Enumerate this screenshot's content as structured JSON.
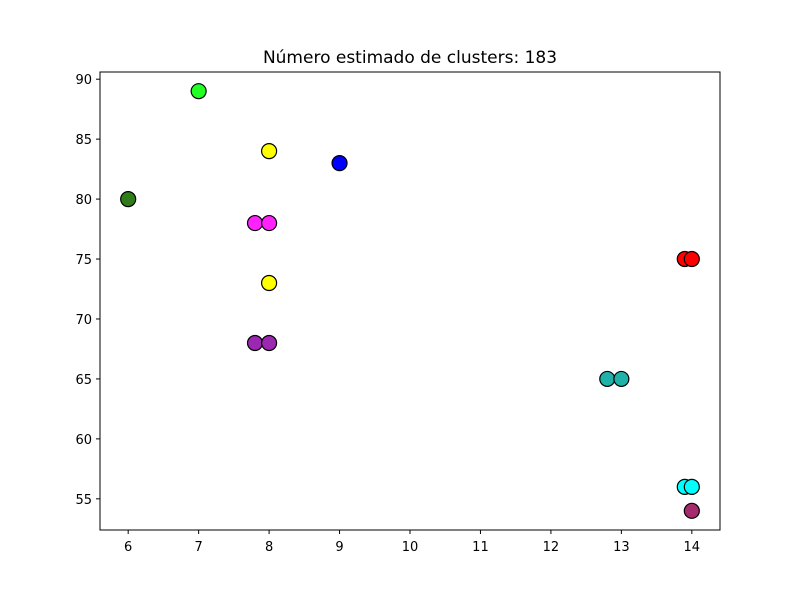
{
  "chart_data": {
    "type": "scatter",
    "title": "Número estimado de clusters: 183",
    "xlabel": "",
    "ylabel": "",
    "xlim": [
      5.6,
      14.4
    ],
    "ylim": [
      52.4,
      90.6
    ],
    "xticks": [
      6,
      7,
      8,
      9,
      10,
      11,
      12,
      13,
      14
    ],
    "yticks": [
      55,
      60,
      65,
      70,
      75,
      80,
      85,
      90
    ],
    "grid": false,
    "points": [
      {
        "x": 7,
        "y": 89,
        "color": "#22ff22"
      },
      {
        "x": 8,
        "y": 84,
        "color": "#ffff00"
      },
      {
        "x": 9,
        "y": 83,
        "color": "#0000ff"
      },
      {
        "x": 6,
        "y": 80,
        "color": "#2e7d1a"
      },
      {
        "x": 7.8,
        "y": 78,
        "color": "#ff22ff"
      },
      {
        "x": 8,
        "y": 78,
        "color": "#ff22ff"
      },
      {
        "x": 13.9,
        "y": 75,
        "color": "#ff0000"
      },
      {
        "x": 14,
        "y": 75,
        "color": "#ff0000"
      },
      {
        "x": 8,
        "y": 73,
        "color": "#ffff00"
      },
      {
        "x": 7.8,
        "y": 68,
        "color": "#9c27b0"
      },
      {
        "x": 8,
        "y": 68,
        "color": "#9c27b0"
      },
      {
        "x": 12.8,
        "y": 65,
        "color": "#20b2aa"
      },
      {
        "x": 13,
        "y": 65,
        "color": "#20b2aa"
      },
      {
        "x": 13.9,
        "y": 56,
        "color": "#00ffff"
      },
      {
        "x": 14,
        "y": 56,
        "color": "#00ffff"
      },
      {
        "x": 14,
        "y": 54,
        "color": "#a52a6e"
      }
    ]
  }
}
